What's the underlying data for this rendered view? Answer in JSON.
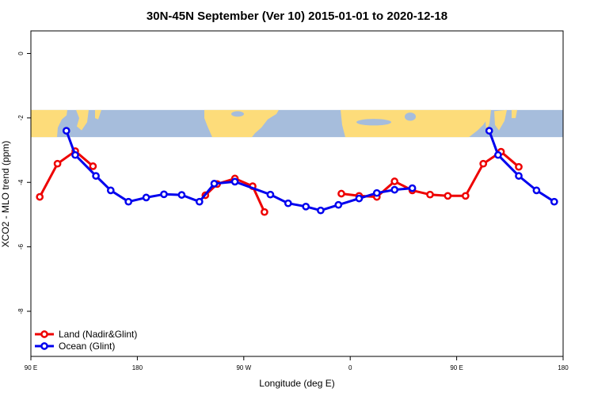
{
  "chart_data": {
    "type": "line",
    "title": "30N-45N September (Ver 10)   2015-01-01 to 2020-12-18",
    "xlabel": "Longitude (deg E)",
    "ylabel": "XCO2 - MLO trend (ppm)",
    "xlim": [
      90,
      540
    ],
    "ylim": [
      -9.4,
      0.7
    ],
    "x_ticks": [
      {
        "value": 90,
        "label": "90 E"
      },
      {
        "value": 180,
        "label": "180"
      },
      {
        "value": 270,
        "label": "90 W"
      },
      {
        "value": 360,
        "label": "0"
      },
      {
        "value": 450,
        "label": "90 E"
      },
      {
        "value": 540,
        "label": "180"
      }
    ],
    "y_ticks": [
      {
        "value": 0,
        "label": "0"
      },
      {
        "value": -2,
        "label": "-2"
      },
      {
        "value": -4,
        "label": "-4"
      },
      {
        "value": -6,
        "label": "-6"
      },
      {
        "value": -8,
        "label": "-8"
      }
    ],
    "map_band": {
      "y_top": -1.75,
      "y_bottom": -2.6,
      "ocean_color": "#a6bddc",
      "land_color": "#fddc7a"
    },
    "legend_position": "bottom-left",
    "series": [
      {
        "name": "Land (Nadir&Glint)",
        "color": "#ee0000",
        "segments": [
          [
            [
              97.5,
              -4.45
            ],
            [
              112.5,
              -3.42
            ],
            [
              127.5,
              -3.03
            ],
            [
              142.5,
              -3.5
            ]
          ],
          [
            [
              237.5,
              -4.4
            ],
            [
              247.5,
              -4.05
            ],
            [
              262.5,
              -3.88
            ],
            [
              277.5,
              -4.12
            ],
            [
              287.5,
              -4.92
            ]
          ],
          [
            [
              352.5,
              -4.35
            ],
            [
              367.5,
              -4.42
            ],
            [
              382.5,
              -4.45
            ],
            [
              397.5,
              -3.97
            ],
            [
              412.5,
              -4.25
            ],
            [
              427.5,
              -4.38
            ],
            [
              442.5,
              -4.42
            ],
            [
              457.5,
              -4.42
            ],
            [
              472.5,
              -3.42
            ],
            [
              487.5,
              -3.05
            ],
            [
              502.5,
              -3.52
            ]
          ]
        ]
      },
      {
        "name": "Ocean (Glint)",
        "color": "#0000ee",
        "segments": [
          [
            [
              120,
              -2.4
            ],
            [
              127.5,
              -3.15
            ],
            [
              145,
              -3.8
            ],
            [
              157.5,
              -4.25
            ],
            [
              172.5,
              -4.6
            ],
            [
              187.5,
              -4.47
            ],
            [
              202.5,
              -4.37
            ],
            [
              217.5,
              -4.39
            ],
            [
              232.5,
              -4.6
            ],
            [
              245,
              -4.04
            ],
            [
              262.5,
              -3.98
            ],
            [
              292.5,
              -4.38
            ],
            [
              307.5,
              -4.65
            ],
            [
              322.5,
              -4.75
            ],
            [
              335,
              -4.87
            ],
            [
              350,
              -4.7
            ],
            [
              367.5,
              -4.5
            ],
            [
              382.5,
              -4.33
            ],
            [
              397.5,
              -4.23
            ],
            [
              412.5,
              -4.18
            ]
          ],
          [
            [
              477.5,
              -2.4
            ],
            [
              485,
              -3.15
            ],
            [
              502.5,
              -3.8
            ],
            [
              517.5,
              -4.25
            ],
            [
              532.5,
              -4.6
            ]
          ]
        ]
      }
    ]
  }
}
